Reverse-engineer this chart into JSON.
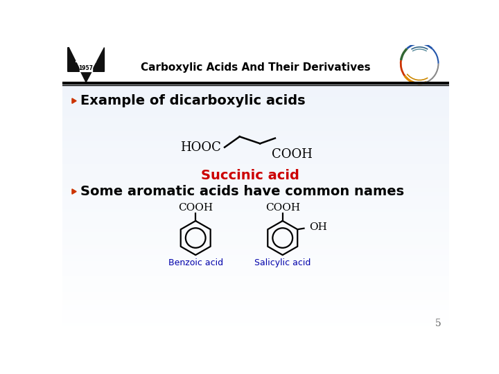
{
  "title": "Carboxylic Acids And Their Derivatives",
  "bg_color_top": "#ccdde8",
  "bg_color_bottom": "#f0f5f8",
  "bullet1": "Example of dicarboxylic acids",
  "succinic_label": "Succinic acid",
  "succinic_color": "#cc0000",
  "bullet2": "Some aromatic acids have common names",
  "benzoic_label": "Benzoic acid",
  "salicylic_label": "Salicylic acid",
  "labels_color": "#0000aa",
  "page_number": "5",
  "bullet_color": "#cc3300",
  "text_color": "#000000",
  "header_bg": "#ffffff",
  "title_fontsize": 11,
  "bullet_fontsize": 14,
  "struct_fontsize": 13,
  "label_fontsize": 9
}
